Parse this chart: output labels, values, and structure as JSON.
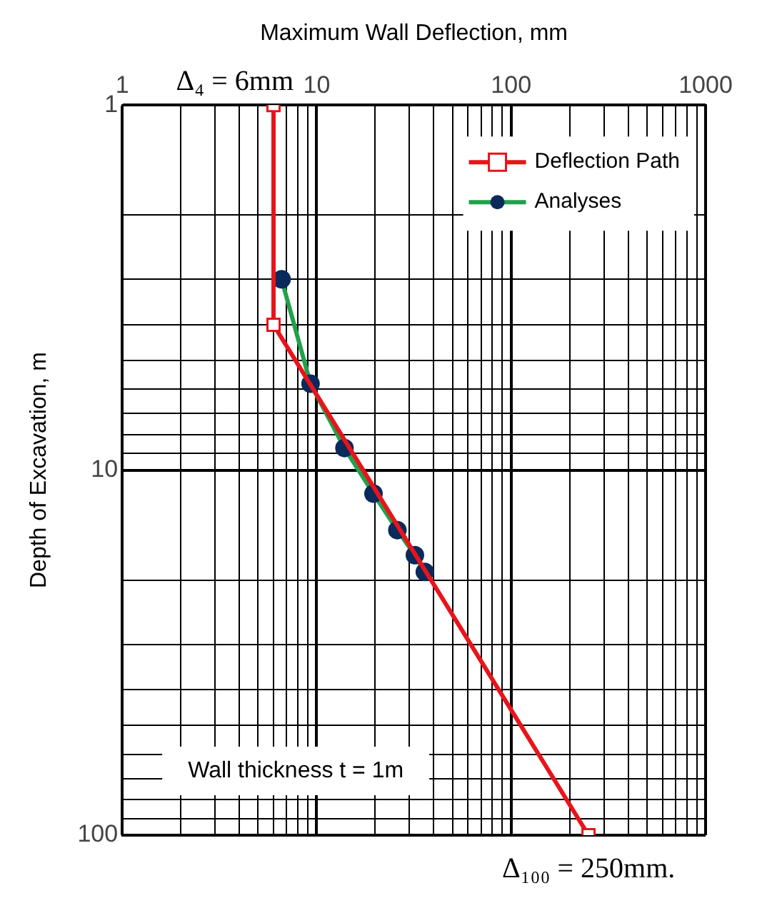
{
  "chart_data": {
    "type": "line",
    "xlabel": "Maximum Wall Deflection, mm",
    "ylabel": "Depth of Excavation, m",
    "log": "xy",
    "xlim": [
      1,
      1000
    ],
    "xticks": [
      1,
      {
        "value": 2,
        "label": null
      },
      {
        "value": 3,
        "label": null
      },
      {
        "value": 4,
        "label": null
      },
      {
        "value": 5,
        "label": null
      },
      {
        "value": 6,
        "label": null
      },
      {
        "value": 7,
        "label": null
      },
      {
        "value": 8,
        "label": null
      },
      {
        "value": 9,
        "label": null
      },
      10,
      {
        "value": 20,
        "label": null
      },
      {
        "value": 30,
        "label": null
      },
      {
        "value": 40,
        "label": null
      },
      {
        "value": 50,
        "label": null
      },
      {
        "value": 60,
        "label": null
      },
      {
        "value": 70,
        "label": null
      },
      {
        "value": 80,
        "label": null
      },
      {
        "value": 90,
        "label": null
      },
      100,
      {
        "value": 200,
        "label": null
      },
      {
        "value": 300,
        "label": null
      },
      {
        "value": 400,
        "label": null
      },
      {
        "value": 500,
        "label": null
      },
      {
        "value": 600,
        "label": null
      },
      {
        "value": 700,
        "label": null
      },
      {
        "value": 800,
        "label": null
      },
      {
        "value": 900,
        "label": null
      },
      1000
    ],
    "ylim": [
      100,
      1
    ],
    "yticks": [
      1,
      {
        "value": 2,
        "label": null
      },
      {
        "value": 3,
        "label": null
      },
      {
        "value": 4,
        "label": null
      },
      {
        "value": 5,
        "label": null
      },
      {
        "value": 6,
        "label": null
      },
      {
        "value": 7,
        "label": null
      },
      {
        "value": 8,
        "label": null
      },
      {
        "value": 9,
        "label": null
      },
      10,
      {
        "value": 20,
        "label": null
      },
      {
        "value": 30,
        "label": null
      },
      {
        "value": 40,
        "label": null
      },
      {
        "value": 50,
        "label": null
      },
      {
        "value": 60,
        "label": null
      },
      {
        "value": 70,
        "label": null
      },
      {
        "value": 80,
        "label": null
      },
      {
        "value": 90,
        "label": null
      },
      100
    ],
    "grid": true,
    "legend": "top right",
    "line_style": "solid",
    "series": [
      {
        "name": "Deflection Path",
        "color": "#e8141b",
        "marker": "square",
        "x": [
          6,
          6,
          250
        ],
        "values": [
          1,
          4,
          100
        ]
      },
      {
        "name": "Analyses",
        "color": "#22a04b",
        "marker": "circle",
        "x": [
          6.6,
          9.3,
          13.9,
          19.6,
          26,
          32,
          36
        ],
        "values": [
          3.0,
          5.8,
          8.7,
          11.6,
          14.6,
          17.1,
          19
        ]
      }
    ],
    "annotations": [
      {
        "text": "Δ₄ = 6mm",
        "x": 6,
        "y": 1
      },
      {
        "text": "Δ₁₀₀ = 250mm.",
        "x": 250,
        "y": 100
      },
      "Wall thickness t = 1m"
    ]
  }
}
